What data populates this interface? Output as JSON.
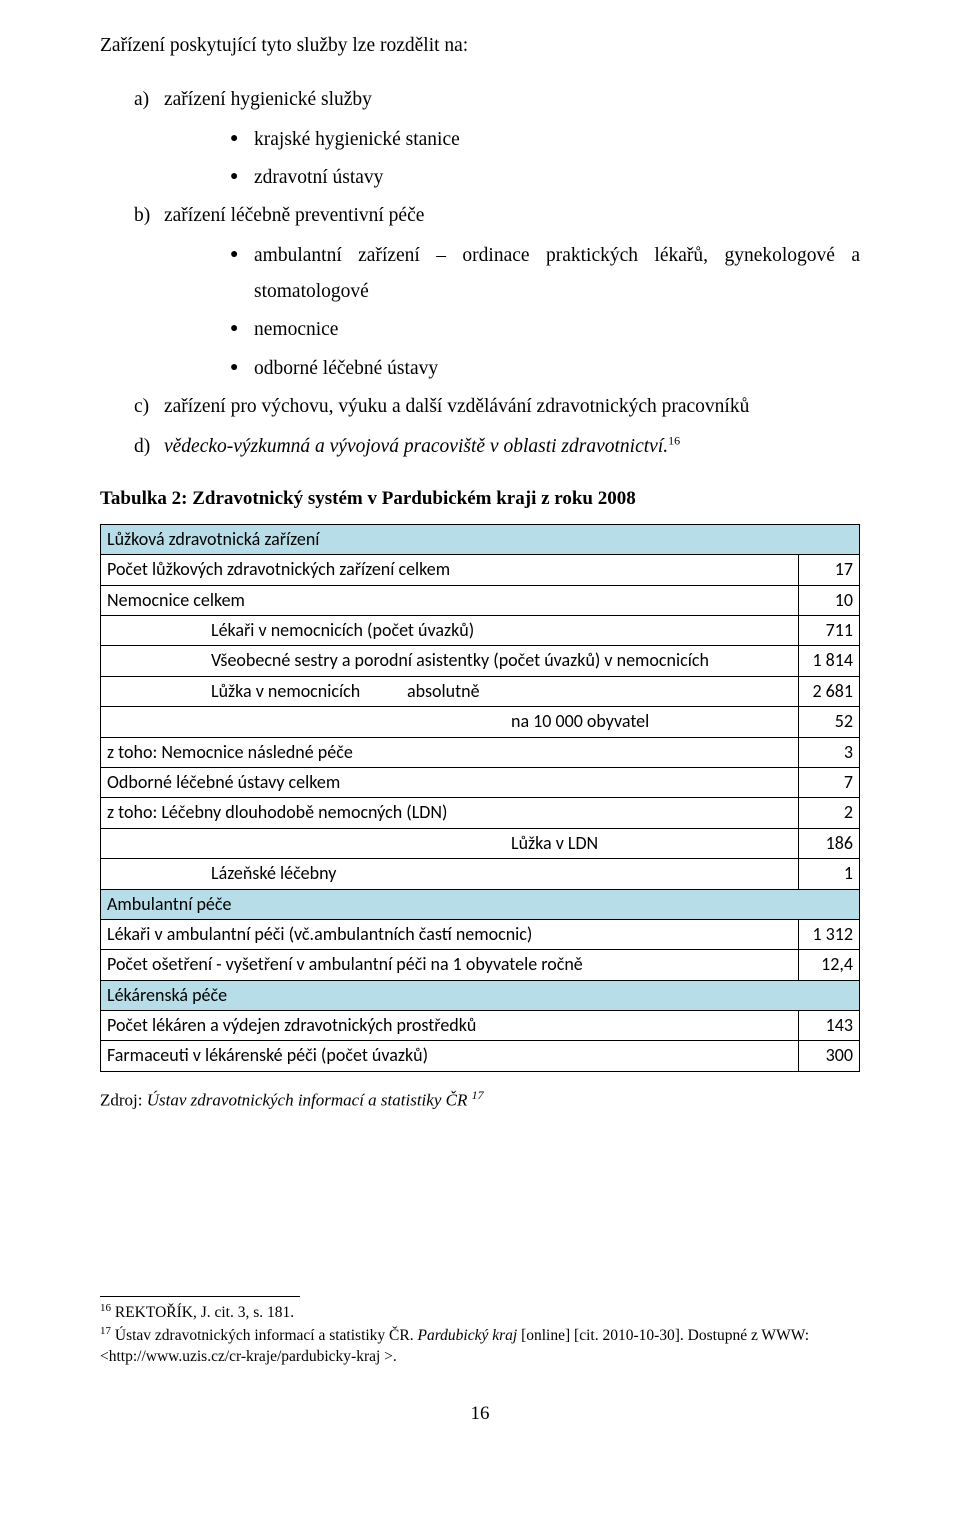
{
  "intro": "Zařízení poskytující tyto služby lze rozdělit na:",
  "list": {
    "a": {
      "marker": "a)",
      "text": "zařízení hygienické služby",
      "bullets": [
        "krajské hygienické stanice",
        "zdravotní ústavy"
      ]
    },
    "b": {
      "marker": "b)",
      "text": "zařízení léčebně preventivní péče",
      "bullets": [
        "ambulantní zařízení – ordinace praktických lékařů, gynekologové a stomatologové",
        "nemocnice",
        "odborné léčebné ústavy"
      ]
    },
    "c": {
      "marker": "c)",
      "text": "zařízení pro výchovu, výuku a další vzdělávání zdravotnických pracovníků"
    },
    "d": {
      "marker": "d)",
      "text_italic": "vědecko-výzkumná a vývojová pracoviště v oblasti zdravotnictví.",
      "sup": "16"
    }
  },
  "table_caption": "Tabulka 2: Zdravotnický systém v Pardubickém kraji z roku 2008",
  "table": {
    "section_bg": "#b7dee8",
    "border_color": "#000000",
    "rows": [
      {
        "type": "section",
        "label": "Lůžková zdravotnická zařízení"
      },
      {
        "label": "Počet lůžkových zdravotnických zařízení celkem",
        "value": "17",
        "indent": 1
      },
      {
        "label": "Nemocnice celkem",
        "value": "10",
        "indent": 0
      },
      {
        "label": "Lékaři v nemocnicích (počet úvazků)",
        "value": "711",
        "indent": 2
      },
      {
        "label": "Všeobecné sestry a porodní asistentky (počet úvazků) v nemocnicích",
        "value": "1 814",
        "indent": 2
      },
      {
        "label": "Lůžka v nemocnicích",
        "label2": "absolutně",
        "value": "2 681",
        "indent": 2,
        "split": true
      },
      {
        "label": "na 10 000 obyvatel",
        "value": "52",
        "indent": 3
      },
      {
        "label": "z toho:   Nemocnice následné péče",
        "value": "3",
        "indent": 1
      },
      {
        "label": "Odborné léčebné ústavy celkem",
        "value": "7",
        "indent": 0
      },
      {
        "label": "z toho:   Léčebny dlouhodobě nemocných (LDN)",
        "value": "2",
        "indent": 1
      },
      {
        "label": "Lůžka v LDN",
        "value": "186",
        "indent": 3
      },
      {
        "label": "Lázeňské léčebny",
        "value": "1",
        "indent": 2
      },
      {
        "type": "section",
        "label": "Ambulantní péče"
      },
      {
        "label": "Lékaři v ambulantní péči (vč.ambulantních častí nemocnic)",
        "value": "1 312",
        "indent": 1
      },
      {
        "label": "Počet ošetření - vyšetření v ambulantní péči na 1 obyvatele ročně",
        "value": "12,4",
        "indent": 1
      },
      {
        "type": "section",
        "label": "Lékárenská péče"
      },
      {
        "label": "Počet lékáren a výdejen zdravotnických prostředků",
        "value": "143",
        "indent": 1
      },
      {
        "label": "Farmaceuti v lékárenské péči (počet úvazků)",
        "value": "300",
        "indent": 1
      }
    ]
  },
  "source": {
    "prefix": "Zdroj: ",
    "text": "Ústav zdravotnických informací a statistiky ČR",
    "sup": "17"
  },
  "footnotes": {
    "f1": {
      "num": "16",
      "text": " REKTOŘÍK, J. cit. 3, s. 181."
    },
    "f2": {
      "num": "17",
      "pre": " Ústav zdravotnických informací a statistiky ČR. ",
      "ital": "Pardubický kraj ",
      "post": "[online] [cit. 2010-10-30]. Dostupné z WWW: <http://www.uzis.cz/cr-kraje/pardubicky-kraj >."
    }
  },
  "page_number": "16"
}
